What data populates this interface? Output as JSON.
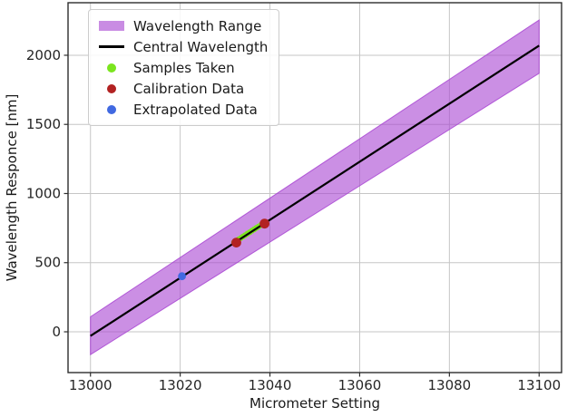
{
  "chart_data": {
    "type": "line",
    "title": "",
    "xlabel": "Micrometer Setting",
    "ylabel": "Wavelength Responce [nm]",
    "xlim": [
      12995,
      13105
    ],
    "ylim": [
      -295,
      2380
    ],
    "x_ticks": [
      13000,
      13020,
      13040,
      13060,
      13080,
      13100
    ],
    "y_ticks": [
      0,
      500,
      1000,
      1500,
      2000
    ],
    "grid": true,
    "legend_position": "upper left",
    "band": {
      "label": "Wavelength Range",
      "color": "#A845D2",
      "opacity": 0.6,
      "polygon": [
        [
          13000,
          -165
        ],
        [
          13000,
          108
        ],
        [
          13100,
          2255
        ],
        [
          13100,
          1870
        ]
      ]
    },
    "central_line": {
      "label": "Central Wavelength",
      "color": "#000000",
      "width": 2.2,
      "points": [
        [
          13000,
          -30
        ],
        [
          13100,
          2070
        ]
      ]
    },
    "series": [
      {
        "name": "Samples Taken",
        "type": "scatter",
        "color": "#7BE51E",
        "marker_radius": 3.2,
        "points": [
          [
            13032.0,
            647
          ],
          [
            13032.5,
            658
          ],
          [
            13033.0,
            668
          ],
          [
            13033.5,
            678
          ],
          [
            13034.0,
            689
          ],
          [
            13034.5,
            699
          ],
          [
            13035.0,
            710
          ],
          [
            13035.5,
            720
          ],
          [
            13036.0,
            731
          ],
          [
            13036.5,
            741
          ],
          [
            13037.0,
            752
          ],
          [
            13037.5,
            762
          ],
          [
            13038.0,
            773
          ],
          [
            13038.5,
            783
          ]
        ]
      },
      {
        "name": "Calibration Data",
        "type": "scatter",
        "color": "#B22222",
        "marker_radius": 5.4,
        "points": [
          [
            13032.5,
            645
          ],
          [
            13038.8,
            782
          ]
        ]
      },
      {
        "name": "Extrapolated Data",
        "type": "scatter",
        "color": "#4169E1",
        "marker_radius": 4.4,
        "points": [
          [
            13020.4,
            402
          ]
        ]
      }
    ],
    "legend": {
      "items": [
        {
          "label": "Wavelength Range",
          "marker": "patch",
          "color": "#A845D2"
        },
        {
          "label": "Central Wavelength",
          "marker": "line",
          "color": "#000000"
        },
        {
          "label": "Samples Taken",
          "marker": "dot",
          "color": "#7BE51E"
        },
        {
          "label": "Calibration Data",
          "marker": "dot",
          "color": "#B22222"
        },
        {
          "label": "Extrapolated Data",
          "marker": "dot",
          "color": "#4169E1"
        }
      ]
    },
    "colors": {
      "grid": "#c6c6c6",
      "spine": "#2e2e2e",
      "tick_text": "#262626",
      "background": "#ffffff"
    }
  }
}
